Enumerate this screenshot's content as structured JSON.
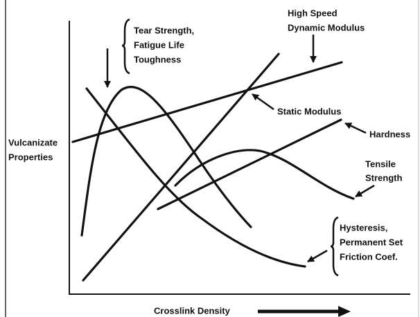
{
  "y_axis_label": [
    "Vulcanizate",
    "Properties"
  ],
  "x_axis_label": "Crosslink Density",
  "annotations": {
    "tear": [
      "Tear Strength,",
      "Fatigue Life",
      "Toughness"
    ],
    "dynamic": [
      "High Speed",
      "Dynamic Modulus"
    ],
    "static": "Static Modulus",
    "hardness": "Hardness",
    "tensile": [
      "Tensile",
      "Strength"
    ],
    "hysteresis": [
      "Hysteresis,",
      "Permanent Set",
      "Friction Coef."
    ]
  }
}
